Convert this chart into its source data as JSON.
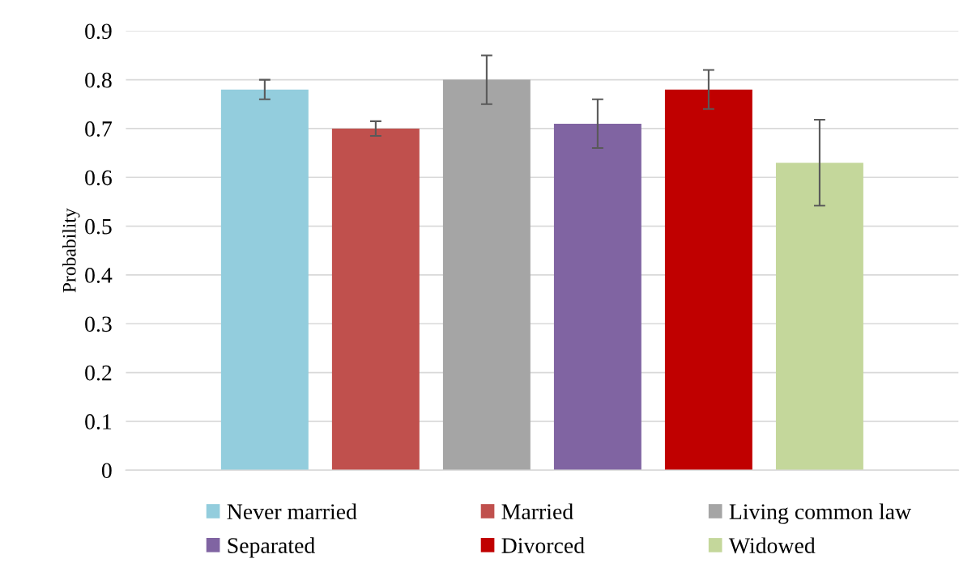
{
  "chart_data": {
    "type": "bar",
    "ylabel": "Probability",
    "categories": [
      null
    ],
    "series": [
      {
        "name": "Never married",
        "color": "#93cddd",
        "values": [
          0.78
        ],
        "errors": [
          0.02
        ]
      },
      {
        "name": "Married",
        "color": "#c0504d",
        "values": [
          0.7
        ],
        "errors": [
          0.015
        ]
      },
      {
        "name": "Living common law",
        "color": "#a5a5a5",
        "values": [
          0.8
        ],
        "errors": [
          0.05
        ]
      },
      {
        "name": "Separated",
        "color": "#8064a2",
        "values": [
          0.71
        ],
        "errors": [
          0.05
        ]
      },
      {
        "name": "Divorced",
        "color": "#c00000",
        "values": [
          0.78
        ],
        "errors": [
          0.04
        ]
      },
      {
        "name": "Widowed",
        "color": "#c4d79b",
        "values": [
          0.63
        ],
        "errors": [
          0.088
        ]
      }
    ],
    "ylim": [
      0,
      0.9
    ],
    "yticks": [
      0,
      0.1,
      0.2,
      0.3,
      0.4,
      0.5,
      0.6,
      0.7,
      0.8,
      0.9
    ],
    "grid": "y",
    "legend": "bottom"
  }
}
